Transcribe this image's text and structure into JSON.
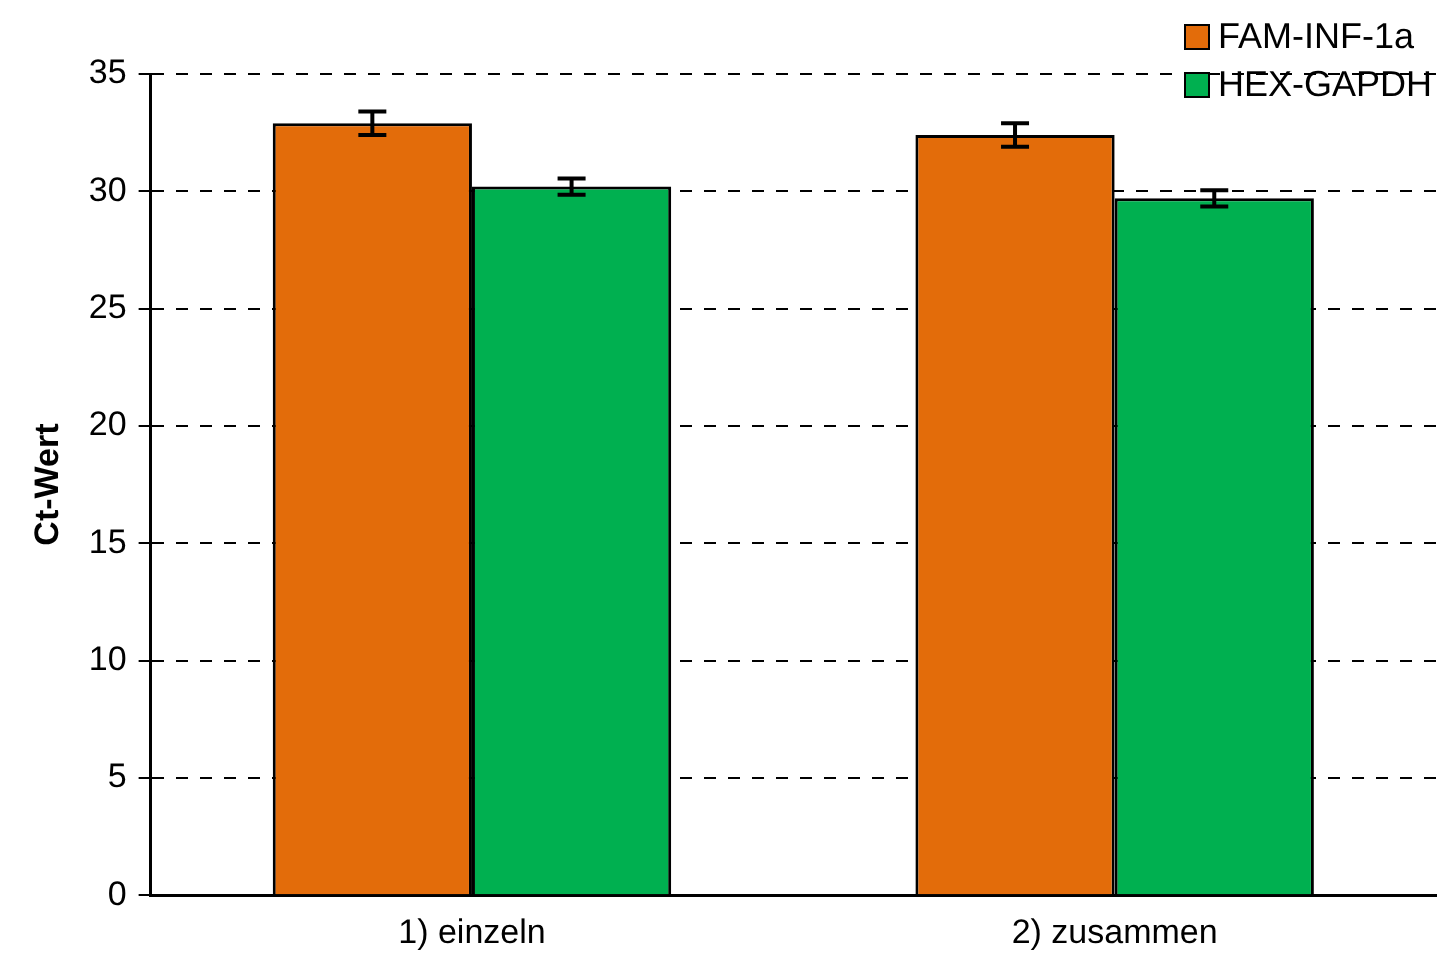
{
  "chart_data": {
    "type": "bar",
    "ylabel": "Ct-Wert",
    "categories": [
      "1) einzeln",
      "2) zusammen"
    ],
    "series": [
      {
        "name": "FAM-INF-1a",
        "color": "#e36c0a",
        "values": [
          32.9,
          32.4
        ],
        "errors": [
          0.5,
          0.5
        ]
      },
      {
        "name": "HEX-GAPDH",
        "color": "#00b050",
        "values": [
          30.2,
          29.7
        ],
        "errors": [
          0.35,
          0.35
        ]
      }
    ],
    "ylim": [
      0,
      35
    ],
    "yticks": [
      0,
      5,
      10,
      15,
      20,
      25,
      30,
      35
    ],
    "grid": "y",
    "legend": "top right"
  }
}
